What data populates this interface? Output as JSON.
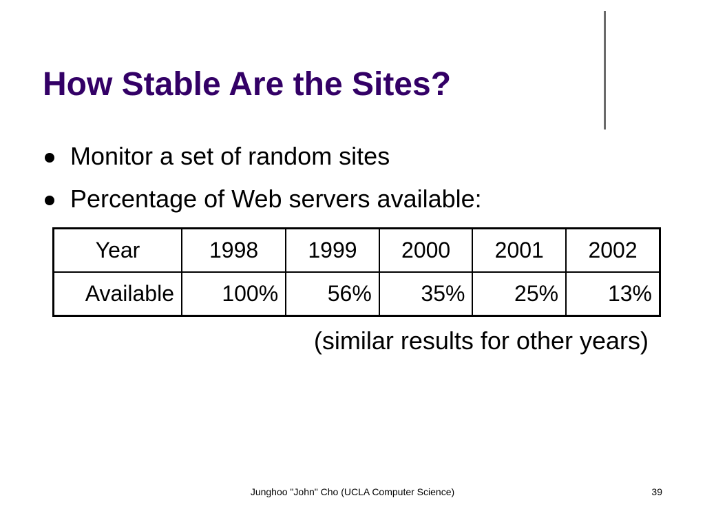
{
  "slide": {
    "title": "How Stable Are the Sites?",
    "title_color": "#330066",
    "bullets": [
      {
        "text": "Monitor a set of random sites"
      },
      {
        "text": "Percentage of Web servers available:"
      }
    ],
    "table": {
      "header": [
        "Year",
        "1998",
        "1999",
        "2000",
        "2001",
        "2002"
      ],
      "row": [
        "Available",
        "100%",
        "56%",
        "35%",
        "25%",
        "13%"
      ]
    },
    "note": "(similar results for other years)",
    "footer": "Junghoo \"John\" Cho (UCLA Computer Science)",
    "page_number": "39"
  }
}
